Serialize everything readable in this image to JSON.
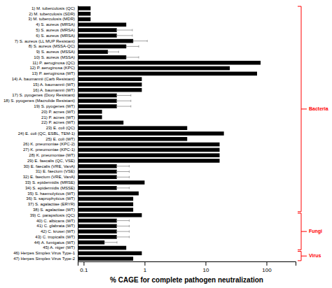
{
  "chart_data": {
    "type": "bar",
    "orientation": "horizontal",
    "log": "x",
    "x_label": "% CAGE for complete pathogen neutralization",
    "categories": [
      "1) M. tuberculosis (QC)",
      "2) M. tuberculosis (SDR)",
      "3) M. tuberculosis (MDR)",
      "4) S. aureus (MRSA)",
      "5) S. aureus (MRSA)",
      "6) S. aureus (MRSA)",
      "7) S. aureus (LL MUP Resistant)",
      "8) S. aureus (MSSA-QC)",
      "9) S. aureus (MSSA)",
      "10) S. aureus (MSSA)",
      "11) P. aeruginosa (QC)",
      "12) P. aeruginosa (KPC)",
      "13) P. aeruginosa (WT)",
      "14) A. baumannii (Carb Resistant)",
      "15) A. baumannii (WT)",
      "16) A. baumannii (WT)",
      "17) S. pyogenes (Doxy Resistant)",
      "18) S. pyogenes (Macrolide Resistant)",
      "19) S. pyogenes (WT)",
      "20) P. acnes (WT)",
      "21) P. acnes (WT)",
      "22) P. acnes (WT)",
      "23) E. coli (QC)",
      "24) E. coli (QC, ESBL, TEM-1)",
      "25) E. coli (WT)",
      "26) K. pneumoniae (KPC-2)",
      "27) K. pneumoniae (KPC-1)",
      "28) K. pneumoniae (WT)",
      "29) E. faecalis (QC, VSE)",
      "30) E. faecalis (VRE, VanA)",
      "31) E. faecium (VSE)",
      "32) E. faecium (VRE, VanA)",
      "33) S. epidermidis (MRSE)",
      "34) S. epidermidis (MSSE)",
      "35) S. haemolyticus (WT)",
      "36) S. saprophyticus (WT)",
      "37) S. agalactiae (ERYR)",
      "38) S. agalactiae (WT)",
      "39) C. parapsilosis (QC)",
      "40) C. albicans (WT)",
      "41) C. glabrata (WT)",
      "42) C. krusei (WT)",
      "43) C. tropicalis (WT)",
      "44) A. fumigatus (WT)",
      "45) A. niger (WT)",
      "46) Herpes Simplex Virus Type-1",
      "47) Herpes Simplex Virus Type-2"
    ],
    "values": [
      0.13,
      0.13,
      0.13,
      0.5,
      0.35,
      0.35,
      0.65,
      0.5,
      0.25,
      0.5,
      80.0,
      25.0,
      70.0,
      0.9,
      0.9,
      0.9,
      0.35,
      0.35,
      0.35,
      0.2,
      0.2,
      0.45,
      5.0,
      20.0,
      5.0,
      17.0,
      17.0,
      17.0,
      17.0,
      0.35,
      0.35,
      0.35,
      1.0,
      0.35,
      0.8,
      0.65,
      0.65,
      0.65,
      0.9,
      0.35,
      0.35,
      0.35,
      0.35,
      0.22,
      0.5,
      0.9,
      0.65
    ],
    "errors": [
      0,
      0,
      0,
      0,
      0.14,
      0.14,
      0.2275,
      0.15,
      0.0625,
      0.15,
      0,
      0,
      0,
      0,
      0,
      0,
      0.1225,
      0.1225,
      0.1225,
      0,
      0,
      0,
      0,
      0,
      0,
      0,
      0,
      0,
      0,
      0.105,
      0.105,
      0.105,
      0,
      0.105,
      0,
      0,
      0,
      0,
      0,
      0.105,
      0.105,
      0.105,
      0.105,
      0.066,
      0,
      0,
      0
    ],
    "color": "#000000",
    "xlim": [
      0.08,
      300
    ],
    "xticks": [
      0.1,
      1,
      10,
      100
    ],
    "grid": false,
    "annotations": [
      {
        "text": "Bacteria",
        "start": "1) M. tuberculosis (QC)",
        "end": "38) S. agalactiae (WT)",
        "color": "#ff0000"
      },
      {
        "text": "Fungi",
        "start": "39) C. parapsilosis (QC)",
        "end": "45) A. niger (WT)",
        "color": "#ff0000"
      },
      {
        "text": "Virus",
        "start": "46) Herpes Simplex Virus Type-1",
        "end": "47) Herpes Simplex Virus Type-2",
        "color": "#ff0000"
      }
    ]
  }
}
